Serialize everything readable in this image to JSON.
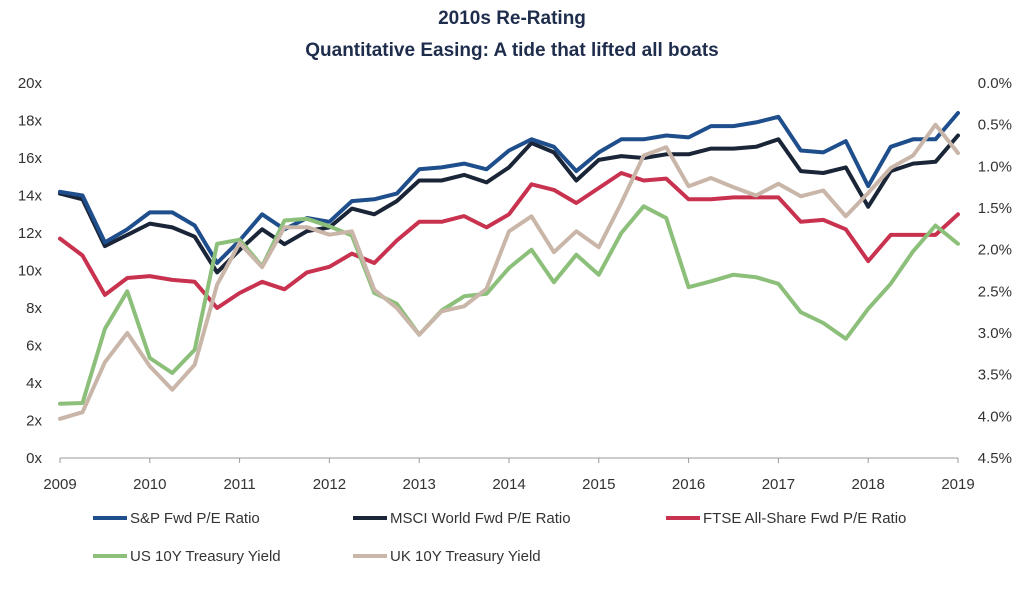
{
  "chart_data": {
    "type": "line",
    "title": "2010s Re-Rating",
    "subtitle": "Quantitative Easing: A tide that lifted all boats",
    "x_ticks": [
      "2009",
      "2010",
      "2011",
      "2012",
      "2013",
      "2014",
      "2015",
      "2016",
      "2017",
      "2018",
      "2019"
    ],
    "xlim": [
      2009,
      2019
    ],
    "y_left": {
      "ylim": [
        0,
        20
      ],
      "ticks": [
        "0x",
        "2x",
        "4x",
        "6x",
        "8x",
        "10x",
        "12x",
        "14x",
        "16x",
        "18x",
        "20x"
      ],
      "tick_values": [
        0,
        2,
        4,
        6,
        8,
        10,
        12,
        14,
        16,
        18,
        20
      ]
    },
    "y_right": {
      "ylim": [
        0.0,
        4.5
      ],
      "inverted": true,
      "ticks": [
        "0.0%",
        "0.5%",
        "1.0%",
        "1.5%",
        "2.0%",
        "2.5%",
        "3.0%",
        "3.5%",
        "4.0%",
        "4.5%"
      ],
      "tick_values": [
        0.0,
        0.5,
        1.0,
        1.5,
        2.0,
        2.5,
        3.0,
        3.5,
        4.0,
        4.5
      ]
    },
    "grid": false,
    "legend_position": "bottom",
    "series": [
      {
        "name": "S&P Fwd P/E Ratio",
        "axis": "left",
        "color": "#1f4e8c",
        "x": [
          2009.0,
          2009.25,
          2009.5,
          2009.75,
          2010.0,
          2010.25,
          2010.5,
          2010.75,
          2011.0,
          2011.25,
          2011.5,
          2011.75,
          2012.0,
          2012.25,
          2012.5,
          2012.75,
          2013.0,
          2013.25,
          2013.5,
          2013.75,
          2014.0,
          2014.25,
          2014.5,
          2014.75,
          2015.0,
          2015.25,
          2015.5,
          2015.75,
          2016.0,
          2016.25,
          2016.5,
          2016.75,
          2017.0,
          2017.25,
          2017.5,
          2017.75,
          2018.0,
          2018.25,
          2018.5,
          2018.75,
          2019.0
        ],
        "values": [
          14.2,
          14.0,
          11.5,
          12.2,
          13.1,
          13.1,
          12.4,
          10.4,
          11.6,
          13.0,
          12.2,
          12.8,
          12.6,
          13.7,
          13.8,
          14.1,
          15.4,
          15.5,
          15.7,
          15.4,
          16.4,
          17.0,
          16.6,
          15.3,
          16.3,
          17.0,
          17.0,
          17.2,
          17.1,
          17.7,
          17.7,
          17.9,
          18.2,
          16.4,
          16.3,
          16.9,
          14.5,
          16.6,
          17.0,
          17.0,
          18.4
        ]
      },
      {
        "name": "MSCI World Fwd P/E Ratio",
        "axis": "left",
        "color": "#1a2538",
        "x": [
          2009.0,
          2009.25,
          2009.5,
          2009.75,
          2010.0,
          2010.25,
          2010.5,
          2010.75,
          2011.0,
          2011.25,
          2011.5,
          2011.75,
          2012.0,
          2012.25,
          2012.5,
          2012.75,
          2013.0,
          2013.25,
          2013.5,
          2013.75,
          2014.0,
          2014.25,
          2014.5,
          2014.75,
          2015.0,
          2015.25,
          2015.5,
          2015.75,
          2016.0,
          2016.25,
          2016.5,
          2016.75,
          2017.0,
          2017.25,
          2017.5,
          2017.75,
          2018.0,
          2018.25,
          2018.5,
          2018.75,
          2019.0
        ],
        "values": [
          14.1,
          13.8,
          11.3,
          11.9,
          12.5,
          12.3,
          11.8,
          9.9,
          11.1,
          12.2,
          11.4,
          12.1,
          12.3,
          13.3,
          13.0,
          13.7,
          14.8,
          14.8,
          15.1,
          14.7,
          15.5,
          16.8,
          16.3,
          14.8,
          15.9,
          16.1,
          16.0,
          16.2,
          16.2,
          16.5,
          16.5,
          16.6,
          17.0,
          15.3,
          15.2,
          15.5,
          13.4,
          15.3,
          15.7,
          15.8,
          17.2
        ]
      },
      {
        "name": "FTSE All-Share Fwd P/E Ratio",
        "axis": "left",
        "color": "#c8324f",
        "x": [
          2009.0,
          2009.25,
          2009.5,
          2009.75,
          2010.0,
          2010.25,
          2010.5,
          2010.75,
          2011.0,
          2011.25,
          2011.5,
          2011.75,
          2012.0,
          2012.25,
          2012.5,
          2012.75,
          2013.0,
          2013.25,
          2013.5,
          2013.75,
          2014.0,
          2014.25,
          2014.5,
          2014.75,
          2015.0,
          2015.25,
          2015.5,
          2015.75,
          2016.0,
          2016.25,
          2016.5,
          2016.75,
          2017.0,
          2017.25,
          2017.5,
          2017.75,
          2018.0,
          2018.25,
          2018.5,
          2018.75,
          2019.0
        ],
        "values": [
          11.7,
          10.8,
          8.7,
          9.6,
          9.7,
          9.5,
          9.4,
          8.0,
          8.8,
          9.4,
          9.0,
          9.9,
          10.2,
          10.9,
          10.4,
          11.6,
          12.6,
          12.6,
          12.9,
          12.3,
          13.0,
          14.6,
          14.3,
          13.6,
          14.4,
          15.2,
          14.8,
          14.9,
          13.8,
          13.8,
          13.9,
          13.9,
          13.9,
          12.6,
          12.7,
          12.2,
          10.5,
          11.9,
          11.9,
          11.9,
          13.0
        ]
      },
      {
        "name": "US 10Y Treasury Yield",
        "axis": "right",
        "color": "#8cc07a",
        "x": [
          2009.0,
          2009.25,
          2009.5,
          2009.75,
          2010.0,
          2010.25,
          2010.5,
          2010.75,
          2011.0,
          2011.25,
          2011.5,
          2011.75,
          2012.0,
          2012.25,
          2012.5,
          2012.75,
          2013.0,
          2013.25,
          2013.5,
          2013.75,
          2014.0,
          2014.25,
          2014.5,
          2014.75,
          2015.0,
          2015.25,
          2015.5,
          2015.75,
          2016.0,
          2016.25,
          2016.5,
          2016.75,
          2017.0,
          2017.25,
          2017.5,
          2017.75,
          2018.0,
          2018.25,
          2018.5,
          2018.75,
          2019.0
        ],
        "values": [
          3.85,
          3.84,
          2.95,
          2.5,
          3.3,
          3.48,
          3.2,
          1.93,
          1.88,
          2.2,
          1.65,
          1.63,
          1.72,
          1.83,
          2.52,
          2.65,
          3.02,
          2.73,
          2.56,
          2.53,
          2.22,
          2.0,
          2.39,
          2.06,
          2.3,
          1.8,
          1.48,
          1.62,
          2.45,
          2.38,
          2.3,
          2.33,
          2.41,
          2.75,
          2.88,
          3.07,
          2.71,
          2.41,
          2.02,
          1.71,
          1.93
        ]
      },
      {
        "name": "UK 10Y Treasury Yield",
        "axis": "right",
        "color": "#c9b6a9",
        "x": [
          2009.0,
          2009.25,
          2009.5,
          2009.75,
          2010.0,
          2010.25,
          2010.5,
          2010.75,
          2011.0,
          2011.25,
          2011.5,
          2011.75,
          2012.0,
          2012.25,
          2012.5,
          2012.75,
          2013.0,
          2013.25,
          2013.5,
          2013.75,
          2014.0,
          2014.25,
          2014.5,
          2014.75,
          2015.0,
          2015.25,
          2015.5,
          2015.75,
          2016.0,
          2016.25,
          2016.5,
          2016.75,
          2017.0,
          2017.25,
          2017.5,
          2017.75,
          2018.0,
          2018.25,
          2018.5,
          2018.75,
          2019.0
        ],
        "values": [
          4.03,
          3.95,
          3.35,
          3.0,
          3.4,
          3.68,
          3.38,
          2.42,
          1.92,
          2.21,
          1.73,
          1.73,
          1.82,
          1.78,
          2.48,
          2.7,
          3.02,
          2.74,
          2.68,
          2.47,
          1.78,
          1.6,
          2.03,
          1.78,
          1.97,
          1.44,
          0.87,
          0.77,
          1.24,
          1.14,
          1.25,
          1.35,
          1.21,
          1.36,
          1.29,
          1.6,
          1.32,
          1.02,
          0.87,
          0.5,
          0.84
        ]
      }
    ]
  }
}
